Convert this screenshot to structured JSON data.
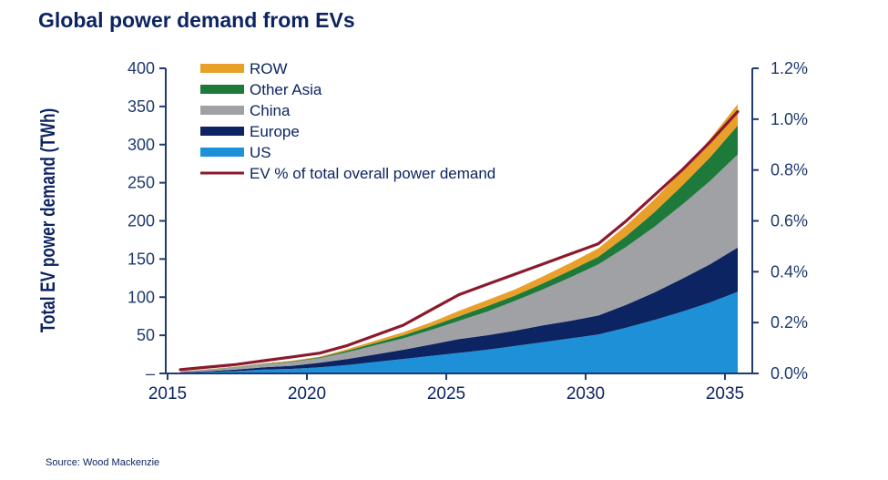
{
  "chart_data": {
    "type": "area",
    "title": "Global power demand from EVs",
    "ylabel": "Total EV power demand (TWh)",
    "y2label": "",
    "xlabel": "",
    "source": "Source: Wood Mackenzie",
    "x": [
      2015,
      2016,
      2017,
      2018,
      2019,
      2020,
      2021,
      2022,
      2023,
      2024,
      2025,
      2026,
      2027,
      2028,
      2029,
      2030,
      2031,
      2032,
      2033,
      2034,
      2035
    ],
    "xlim": [
      2014.5,
      2035.5
    ],
    "ylim": [
      0,
      400
    ],
    "y2lim": [
      0,
      1.2
    ],
    "x_ticks": [
      "2015",
      "2020",
      "2025",
      "2030",
      "2035"
    ],
    "y_ticks": [
      "–",
      "50",
      "100",
      "150",
      "200",
      "250",
      "300",
      "350",
      "400"
    ],
    "y2_ticks": [
      "0.0%",
      "0.2%",
      "0.4%",
      "0.6%",
      "0.8%",
      "1.0%",
      "1.2%"
    ],
    "stacked": true,
    "series": [
      {
        "name": "US",
        "color": "#1e90d8",
        "values": [
          1,
          2,
          3,
          5,
          6,
          8,
          11,
          15,
          19,
          23,
          27,
          31,
          36,
          41,
          46,
          51,
          60,
          70,
          81,
          93,
          107
        ]
      },
      {
        "name": "Europe",
        "color": "#0c2461",
        "values": [
          0.5,
          1,
          2,
          3,
          4,
          6,
          8,
          10,
          12,
          15,
          18,
          19,
          20,
          22,
          23,
          25,
          30,
          36,
          43,
          50,
          58
        ]
      },
      {
        "name": "China",
        "color": "#a0a1a5",
        "values": [
          1,
          2,
          3,
          4,
          5,
          6,
          9,
          12,
          15,
          19,
          24,
          31,
          39,
          47,
          57,
          67,
          76,
          86,
          97,
          109,
          122
        ]
      },
      {
        "name": "Other Asia",
        "color": "#1e7a3a",
        "values": [
          0.2,
          0.3,
          0.5,
          0.7,
          0.9,
          1,
          2,
          3,
          4,
          5,
          6,
          7,
          7,
          8,
          9,
          10,
          14,
          19,
          25,
          31,
          38
        ]
      },
      {
        "name": "ROW",
        "color": "#e8a02a",
        "values": [
          0.2,
          0.3,
          0.5,
          0.6,
          0.8,
          1,
          2,
          3,
          4,
          5,
          7,
          8,
          8,
          9,
          10,
          11,
          14,
          17,
          20,
          24,
          28
        ]
      }
    ],
    "line_series": {
      "name": "EV % of total overall power demand",
      "color": "#8b1a2e",
      "axis": "right",
      "unit": "%",
      "values": [
        0.015,
        0.025,
        0.035,
        0.05,
        0.065,
        0.08,
        0.11,
        0.15,
        0.19,
        0.25,
        0.31,
        0.35,
        0.39,
        0.43,
        0.47,
        0.51,
        0.6,
        0.7,
        0.8,
        0.91,
        1.03
      ]
    },
    "legend_order": [
      "ROW",
      "Other Asia",
      "China",
      "Europe",
      "US",
      "EV % of total overall power demand"
    ],
    "legend_placement": "top-left",
    "grid": false,
    "axis_color": "#1f3a6e"
  }
}
